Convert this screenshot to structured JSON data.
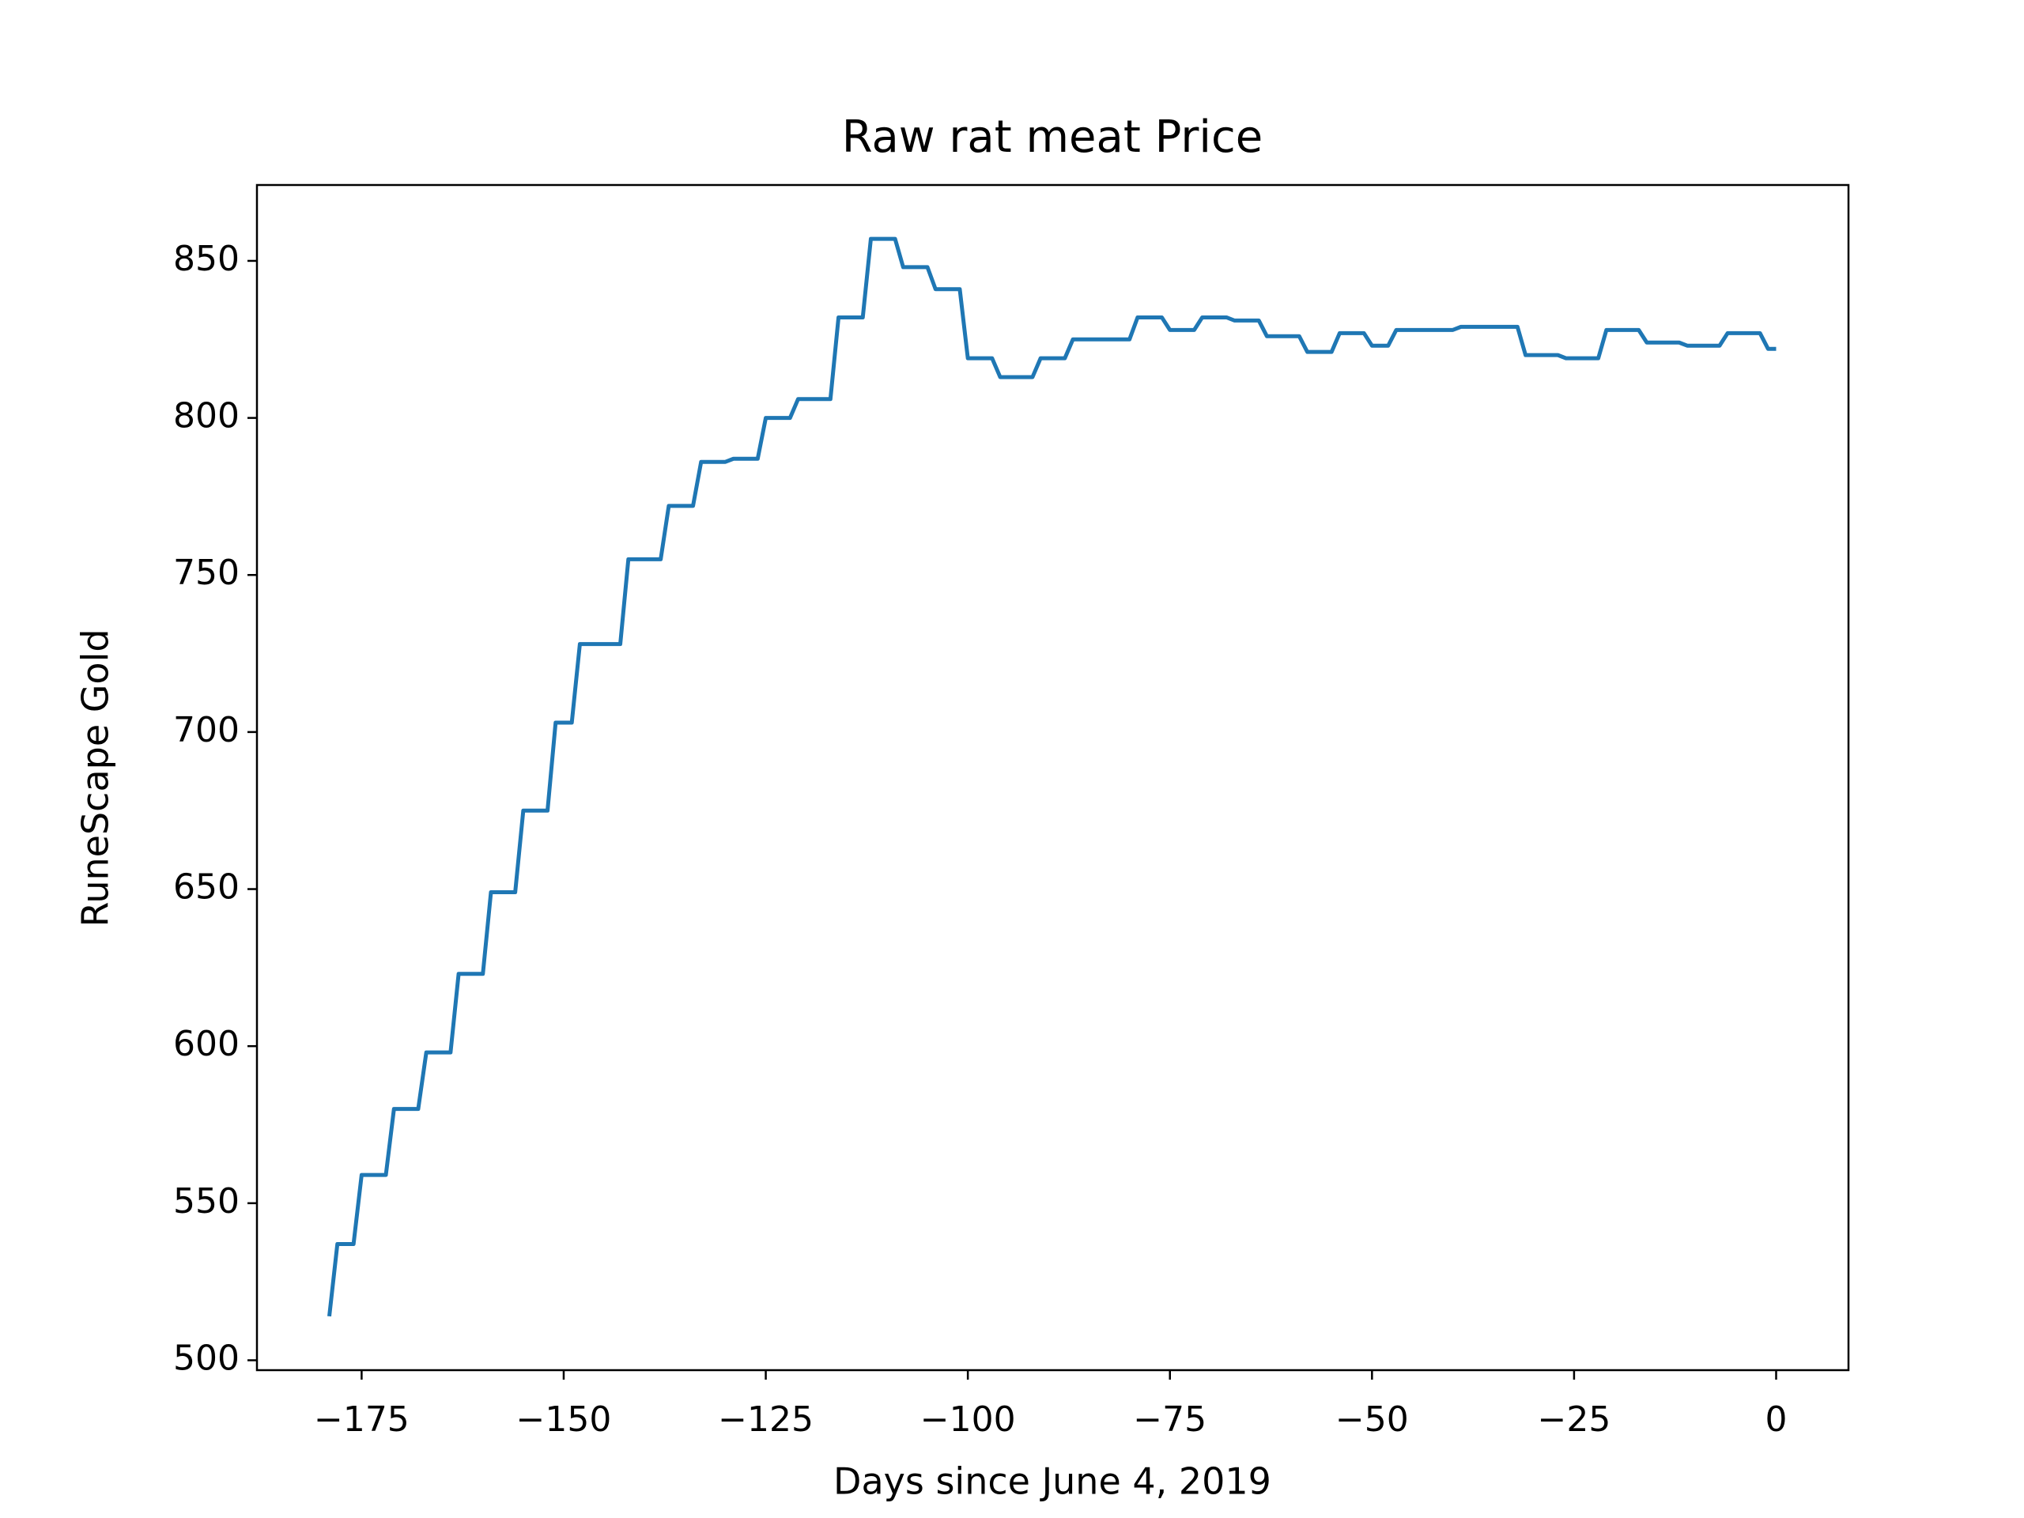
{
  "chart_data": {
    "type": "line",
    "title": "Raw rat meat Price",
    "xlabel": "Days since June 4, 2019",
    "ylabel": "RuneScape Gold",
    "color": "#1f77b4",
    "x": [
      -179,
      -178,
      -177,
      -176,
      -175,
      -174,
      -173,
      -172,
      -171,
      -170,
      -169,
      -168,
      -167,
      -166,
      -165,
      -164,
      -163,
      -162,
      -161,
      -160,
      -159,
      -158,
      -157,
      -156,
      -155,
      -154,
      -153,
      -152,
      -151,
      -150,
      -149,
      -148,
      -147,
      -146,
      -145,
      -144,
      -143,
      -142,
      -141,
      -140,
      -139,
      -138,
      -137,
      -136,
      -135,
      -134,
      -133,
      -132,
      -131,
      -130,
      -129,
      -128,
      -127,
      -126,
      -125,
      -124,
      -123,
      -122,
      -121,
      -120,
      -119,
      -118,
      -117,
      -116,
      -115,
      -114,
      -113,
      -112,
      -111,
      -110,
      -109,
      -108,
      -107,
      -106,
      -105,
      -104,
      -103,
      -102,
      -101,
      -100,
      -99,
      -98,
      -97,
      -96,
      -95,
      -94,
      -93,
      -92,
      -91,
      -90,
      -89,
      -88,
      -87,
      -86,
      -85,
      -84,
      -83,
      -82,
      -81,
      -80,
      -79,
      -78,
      -77,
      -76,
      -75,
      -74,
      -73,
      -72,
      -71,
      -70,
      -69,
      -68,
      -67,
      -66,
      -65,
      -64,
      -63,
      -62,
      -61,
      -60,
      -59,
      -58,
      -57,
      -56,
      -55,
      -54,
      -53,
      -52,
      -51,
      -50,
      -49,
      -48,
      -47,
      -46,
      -45,
      -44,
      -43,
      -42,
      -41,
      -40,
      -39,
      -38,
      -37,
      -36,
      -35,
      -34,
      -33,
      -32,
      -31,
      -30,
      -29,
      -28,
      -27,
      -26,
      -25,
      -24,
      -23,
      -22,
      -21,
      -20,
      -19,
      -18,
      -17,
      -16,
      -15,
      -14,
      -13,
      -12,
      -11,
      -10,
      -9,
      -8,
      -7,
      -6,
      -5,
      -4,
      -3,
      -2,
      -1,
      0
    ],
    "values": [
      514,
      537,
      537,
      537,
      559,
      559,
      559,
      559,
      580,
      580,
      580,
      580,
      598,
      598,
      598,
      598,
      623,
      623,
      623,
      623,
      649,
      649,
      649,
      649,
      675,
      675,
      675,
      675,
      703,
      703,
      703,
      728,
      728,
      728,
      728,
      728,
      728,
      755,
      755,
      755,
      755,
      755,
      772,
      772,
      772,
      772,
      786,
      786,
      786,
      786,
      787,
      787,
      787,
      787,
      800,
      800,
      800,
      800,
      806,
      806,
      806,
      806,
      806,
      832,
      832,
      832,
      832,
      857,
      857,
      857,
      857,
      848,
      848,
      848,
      848,
      841,
      841,
      841,
      841,
      819,
      819,
      819,
      819,
      813,
      813,
      813,
      813,
      813,
      819,
      819,
      819,
      819,
      825,
      825,
      825,
      825,
      825,
      825,
      825,
      825,
      832,
      832,
      832,
      832,
      828,
      828,
      828,
      828,
      832,
      832,
      832,
      832,
      831,
      831,
      831,
      831,
      826,
      826,
      826,
      826,
      826,
      821,
      821,
      821,
      821,
      827,
      827,
      827,
      827,
      823,
      823,
      823,
      828,
      828,
      828,
      828,
      828,
      828,
      828,
      828,
      829,
      829,
      829,
      829,
      829,
      829,
      829,
      829,
      820,
      820,
      820,
      820,
      820,
      819,
      819,
      819,
      819,
      819,
      828,
      828,
      828,
      828,
      828,
      824,
      824,
      824,
      824,
      824,
      823,
      823,
      823,
      823,
      823,
      827,
      827,
      827,
      827,
      827,
      822,
      822
    ],
    "xlim": [
      -187.95,
      8.95
    ],
    "xticks": [
      {
        "value": -175,
        "label": "−175"
      },
      {
        "value": -150,
        "label": "−150"
      },
      {
        "value": -125,
        "label": "−125"
      },
      {
        "value": -100,
        "label": "−100"
      },
      {
        "value": -75,
        "label": "−75"
      },
      {
        "value": -50,
        "label": "−50"
      },
      {
        "value": -25,
        "label": "−25"
      },
      0
    ],
    "ylim": [
      496.85,
      874.15
    ],
    "yticks": [
      500,
      550,
      600,
      650,
      700,
      750,
      800,
      850
    ]
  }
}
